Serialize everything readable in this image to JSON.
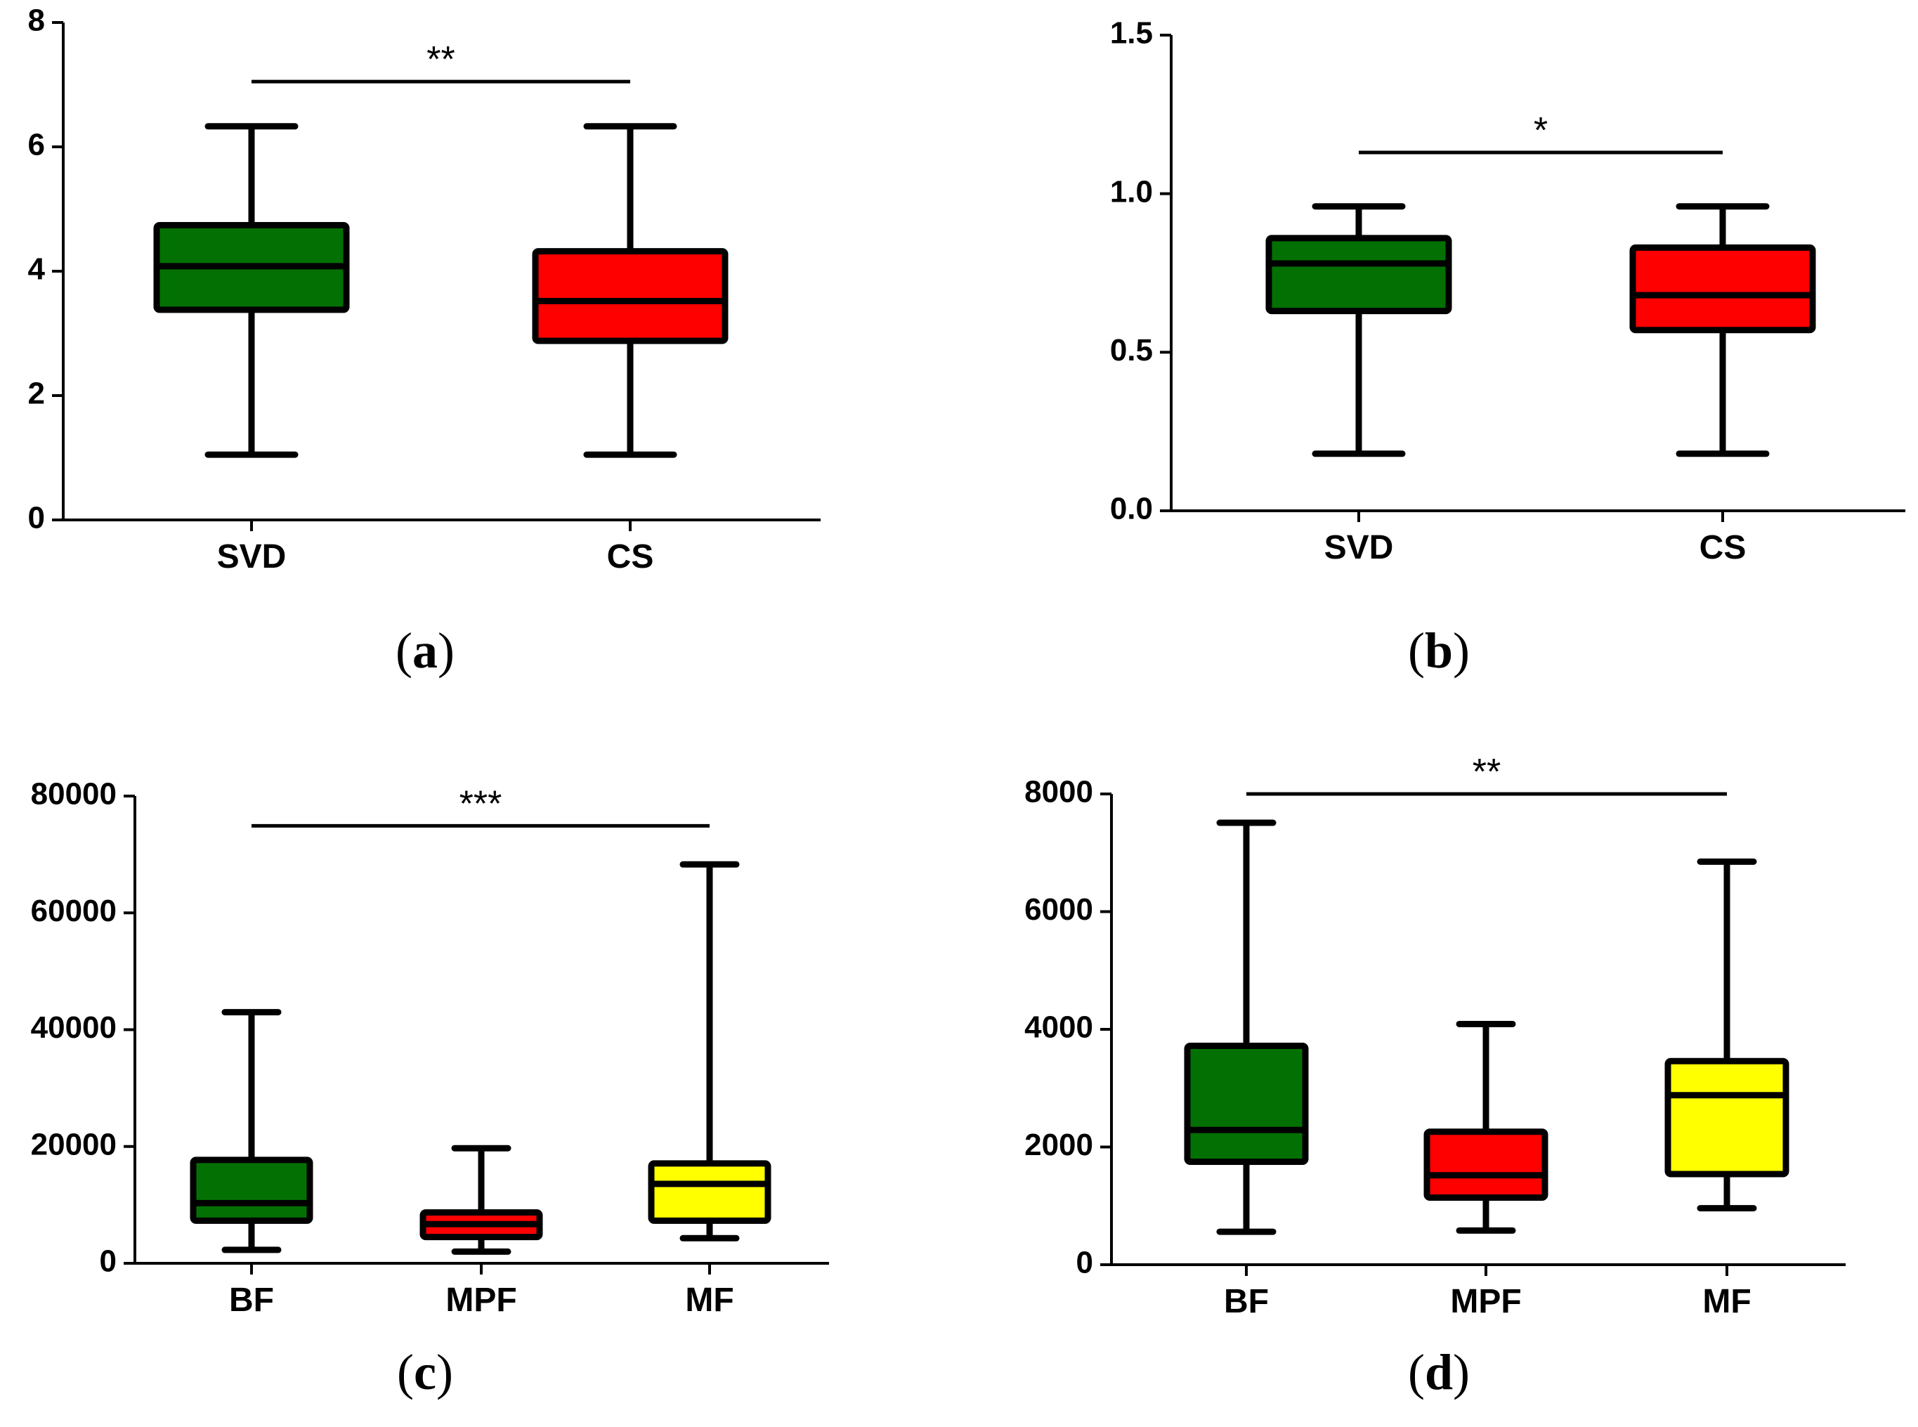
{
  "colors": {
    "green": "#037003",
    "red": "#ff0000",
    "yellow": "#ffff00",
    "stroke": "#000000"
  },
  "chart_data": [
    {
      "type": "box",
      "panel_label": "a",
      "caption_open": "(",
      "caption_close": ")",
      "ylim": [
        0,
        8
      ],
      "yticks": [
        "0",
        "2",
        "4",
        "6",
        "8"
      ],
      "ytick_values": [
        0,
        2,
        4,
        6,
        8
      ],
      "categories": [
        "SVD",
        "CS"
      ],
      "boxes": [
        {
          "name": "SVD",
          "min": 1.05,
          "q1": 3.38,
          "median": 4.08,
          "q3": 4.74,
          "max": 6.33,
          "color": "green"
        },
        {
          "name": "CS",
          "min": 1.05,
          "q1": 2.88,
          "median": 3.52,
          "q3": 4.32,
          "max": 6.33,
          "color": "red"
        }
      ],
      "significance": {
        "label": "**",
        "from": 0,
        "to": 1,
        "y": 7.05
      }
    },
    {
      "type": "box",
      "panel_label": "b",
      "caption_open": "(",
      "caption_close": ")",
      "ylim": [
        0,
        1.5
      ],
      "yticks": [
        "0.0",
        "0.5",
        "1.0",
        "1.5"
      ],
      "ytick_values": [
        0,
        0.5,
        1.0,
        1.5
      ],
      "categories": [
        "SVD",
        "CS"
      ],
      "boxes": [
        {
          "name": "SVD",
          "min": 0.18,
          "q1": 0.63,
          "median": 0.78,
          "q3": 0.86,
          "max": 0.96,
          "color": "green"
        },
        {
          "name": "CS",
          "min": 0.18,
          "q1": 0.57,
          "median": 0.68,
          "q3": 0.83,
          "max": 0.96,
          "color": "red"
        }
      ],
      "significance": {
        "label": "*",
        "from": 0,
        "to": 1,
        "y": 1.13
      }
    },
    {
      "type": "box",
      "panel_label": "c",
      "caption_open": "(",
      "caption_close": ")",
      "ylim": [
        0,
        80000
      ],
      "yticks": [
        "0",
        "20000",
        "40000",
        "60000",
        "80000"
      ],
      "ytick_values": [
        0,
        20000,
        40000,
        60000,
        80000
      ],
      "categories": [
        "BF",
        "MPF",
        "MF"
      ],
      "boxes": [
        {
          "name": "BF",
          "min": 2300,
          "q1": 7300,
          "median": 10300,
          "q3": 17700,
          "max": 43000,
          "color": "green"
        },
        {
          "name": "MPF",
          "min": 2000,
          "q1": 4500,
          "median": 6700,
          "q3": 8700,
          "max": 19700,
          "color": "red"
        },
        {
          "name": "MF",
          "min": 4300,
          "q1": 7300,
          "median": 13600,
          "q3": 17100,
          "max": 68300,
          "color": "yellow"
        }
      ],
      "significance": {
        "label": "***",
        "from": 0,
        "to": 2,
        "y": 74900
      }
    },
    {
      "type": "box",
      "panel_label": "d",
      "caption_open": "(",
      "caption_close": ")",
      "ylim": [
        0,
        8000
      ],
      "yticks": [
        "0",
        "2000",
        "4000",
        "6000",
        "8000"
      ],
      "ytick_values": [
        0,
        2000,
        4000,
        6000,
        8000
      ],
      "categories": [
        "BF",
        "MPF",
        "MF"
      ],
      "boxes": [
        {
          "name": "BF",
          "min": 560,
          "q1": 1750,
          "median": 2290,
          "q3": 3720,
          "max": 7510,
          "color": "green"
        },
        {
          "name": "MPF",
          "min": 580,
          "q1": 1140,
          "median": 1520,
          "q3": 2260,
          "max": 4090,
          "color": "red"
        },
        {
          "name": "MF",
          "min": 960,
          "q1": 1540,
          "median": 2880,
          "q3": 3460,
          "max": 6850,
          "color": "yellow"
        }
      ],
      "significance": {
        "label": "**",
        "from": 0,
        "to": 2,
        "y": 8000
      }
    }
  ]
}
